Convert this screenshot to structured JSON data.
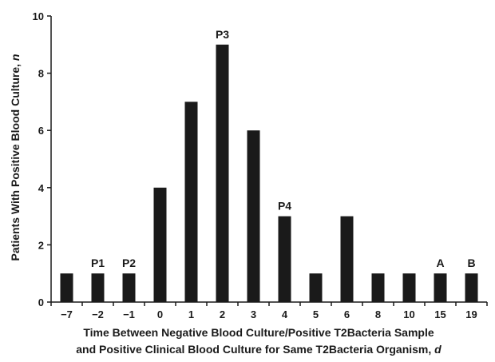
{
  "chart_data": {
    "type": "bar",
    "title": "",
    "categories": [
      "−7",
      "−2",
      "−1",
      "0",
      "1",
      "2",
      "3",
      "4",
      "5",
      "6",
      "8",
      "10",
      "15",
      "19"
    ],
    "values": [
      1,
      1,
      1,
      4,
      7,
      9,
      6,
      3,
      1,
      3,
      1,
      1,
      1,
      1
    ],
    "annotations": [
      "",
      "P1",
      "P2",
      "",
      "",
      "P3",
      "",
      "P4",
      "",
      "",
      "",
      "",
      "A",
      "B"
    ],
    "ylim": [
      0,
      10
    ],
    "yticks": [
      0,
      2,
      4,
      6,
      8,
      10
    ],
    "ylabel": {
      "text": "Patients With Positive Blood Culture, ",
      "var": "n"
    },
    "xlabel": {
      "line1": "Time Between Negative Blood Culture/Positive T2Bacteria Sample",
      "line2": "and Positive Clinical Blood Culture for Same T2Bacteria Organism, ",
      "var": "d"
    },
    "grid": false,
    "legend": "none",
    "bar_color": "#1a1a1a",
    "axis_color": "#1a1a1a"
  }
}
